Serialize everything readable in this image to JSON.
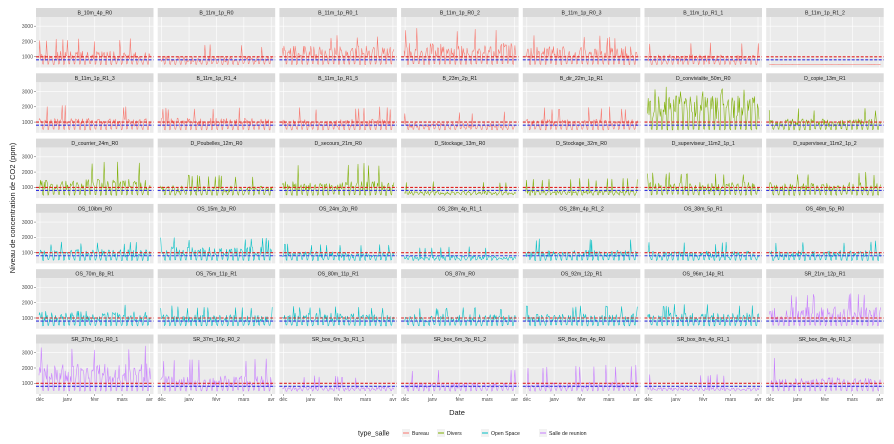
{
  "chart_data": {
    "type": "line",
    "facet_layout": "wrap 7 columns",
    "xlabel": "Date",
    "ylabel": "Niveau de concentration de CO2 (ppm)",
    "x_ticks": [
      "déc",
      "janv",
      "févr",
      "mars",
      "avr"
    ],
    "y_ticks": [
      1000,
      2000,
      3000
    ],
    "ylim": [
      300,
      3600
    ],
    "reference_lines": [
      {
        "value": 800,
        "color": "#3333dd",
        "style": "dashed"
      },
      {
        "value": 1000,
        "color": "#dd2222",
        "style": "dashed"
      }
    ],
    "legend": {
      "title": "type_salle",
      "position": "bottom",
      "items": [
        {
          "label": "Bureau",
          "color": "#f8766d"
        },
        {
          "label": "Divers",
          "color": "#7cae00"
        },
        {
          "label": "Open Space",
          "color": "#00bfc4"
        },
        {
          "label": "Salle de reunion",
          "color": "#c77cff"
        }
      ]
    },
    "panels": [
      {
        "name": "B_10m_4p_R0",
        "type": "Bureau",
        "max": 2200,
        "level": 0.6
      },
      {
        "name": "B_11m_1p_R0",
        "type": "Bureau",
        "max": 1800,
        "level": 0.5
      },
      {
        "name": "B_11m_1p_R0_1",
        "type": "Bureau",
        "max": 2400,
        "level": 0.75
      },
      {
        "name": "B_11m_1p_R0_2",
        "type": "Bureau",
        "max": 2900,
        "level": 0.7
      },
      {
        "name": "B_11m_1p_R0_3",
        "type": "Bureau",
        "max": 2400,
        "level": 0.75
      },
      {
        "name": "B_11m_1p_R1_1",
        "type": "Bureau",
        "max": 2000,
        "level": 0.5
      },
      {
        "name": "B_11m_1p_R1_2",
        "type": "Bureau",
        "max": 500,
        "level": 0.0
      },
      {
        "name": "B_11m_1p_R1_3",
        "type": "Bureau",
        "max": 2100,
        "level": 0.55
      },
      {
        "name": "B_11m_1p_R1_4",
        "type": "Bureau",
        "max": 2000,
        "level": 0.6
      },
      {
        "name": "B_11m_1p_R1_5",
        "type": "Bureau",
        "max": 2000,
        "level": 0.55
      },
      {
        "name": "B_23m_2p_R1",
        "type": "Bureau",
        "max": 1700,
        "level": 0.45
      },
      {
        "name": "B_dir_22m_1p_R1",
        "type": "Bureau",
        "max": 2000,
        "level": 0.55
      },
      {
        "name": "D_convivialite_50m_R0",
        "type": "Divers",
        "max": 3300,
        "level": 0.95
      },
      {
        "name": "D_copie_13m_R1",
        "type": "Divers",
        "max": 1900,
        "level": 0.6
      },
      {
        "name": "D_courrier_24m_R0",
        "type": "Divers",
        "max": 2700,
        "level": 0.55
      },
      {
        "name": "D_Poubelles_12m_R0",
        "type": "Divers",
        "max": 1800,
        "level": 0.55
      },
      {
        "name": "D_secours_21m_R0",
        "type": "Divers",
        "max": 2600,
        "level": 0.5
      },
      {
        "name": "D_Stockage_13m_R0",
        "type": "Divers",
        "max": 1400,
        "level": 0.35
      },
      {
        "name": "D_Stockage_32m_R0",
        "type": "Divers",
        "max": 1600,
        "level": 0.35
      },
      {
        "name": "D_superviseur_11m2_1p_1",
        "type": "Divers",
        "max": 2000,
        "level": 0.65
      },
      {
        "name": "D_superviseur_11m2_1p_2",
        "type": "Divers",
        "max": 2000,
        "level": 0.65
      },
      {
        "name": "OS_10ibm_R0",
        "type": "Open Space",
        "max": 1700,
        "level": 0.7
      },
      {
        "name": "OS_15m_2p_R0",
        "type": "Open Space",
        "max": 2000,
        "level": 0.7
      },
      {
        "name": "OS_24m_2p_R0",
        "type": "Open Space",
        "max": 1600,
        "level": 0.6
      },
      {
        "name": "OS_28m_4p_R1_1",
        "type": "Open Space",
        "max": 1400,
        "level": 0.4
      },
      {
        "name": "OS_28m_4p_R1_2",
        "type": "Open Space",
        "max": 1900,
        "level": 0.55
      },
      {
        "name": "OS_38m_5p_R1",
        "type": "Open Space",
        "max": 1700,
        "level": 0.6
      },
      {
        "name": "OS_48m_5p_R0",
        "type": "Open Space",
        "max": 1800,
        "level": 0.6
      },
      {
        "name": "OS_70m_8p_R1",
        "type": "Open Space",
        "max": 1900,
        "level": 0.8
      },
      {
        "name": "OS_75m_11p_R1",
        "type": "Open Space",
        "max": 1800,
        "level": 0.65
      },
      {
        "name": "OS_80m_11p_R1",
        "type": "Open Space",
        "max": 1800,
        "level": 0.75
      },
      {
        "name": "OS_87m_R0",
        "type": "Open Space",
        "max": 1700,
        "level": 0.75
      },
      {
        "name": "OS_92m_12p_R1",
        "type": "Open Space",
        "max": 1800,
        "level": 0.7
      },
      {
        "name": "OS_96m_14p_R1",
        "type": "Open Space",
        "max": 1900,
        "level": 0.7
      },
      {
        "name": "SR_21m_12p_R1",
        "type": "Salle de reunion",
        "max": 2600,
        "level": 0.7
      },
      {
        "name": "SR_37m_16p_R0_1",
        "type": "Salle de reunion",
        "max": 3500,
        "level": 0.7
      },
      {
        "name": "SR_37m_16p_R0_2",
        "type": "Salle de reunion",
        "max": 2600,
        "level": 0.55
      },
      {
        "name": "SR_box_6m_3p_R1_1",
        "type": "Salle de reunion",
        "max": 1500,
        "level": 0.35
      },
      {
        "name": "SR_box_6m_3p_R1_2",
        "type": "Salle de reunion",
        "max": 1900,
        "level": 0.45
      },
      {
        "name": "SR_Box_8m_4p_R0",
        "type": "Salle de reunion",
        "max": 2200,
        "level": 0.4
      },
      {
        "name": "SR_box_8m_4p_R1_1",
        "type": "Salle de reunion",
        "max": 1600,
        "level": 0.25
      },
      {
        "name": "SR_box_8m_4p_R1_2",
        "type": "Salle de reunion",
        "max": 2800,
        "level": 0.45
      }
    ]
  }
}
